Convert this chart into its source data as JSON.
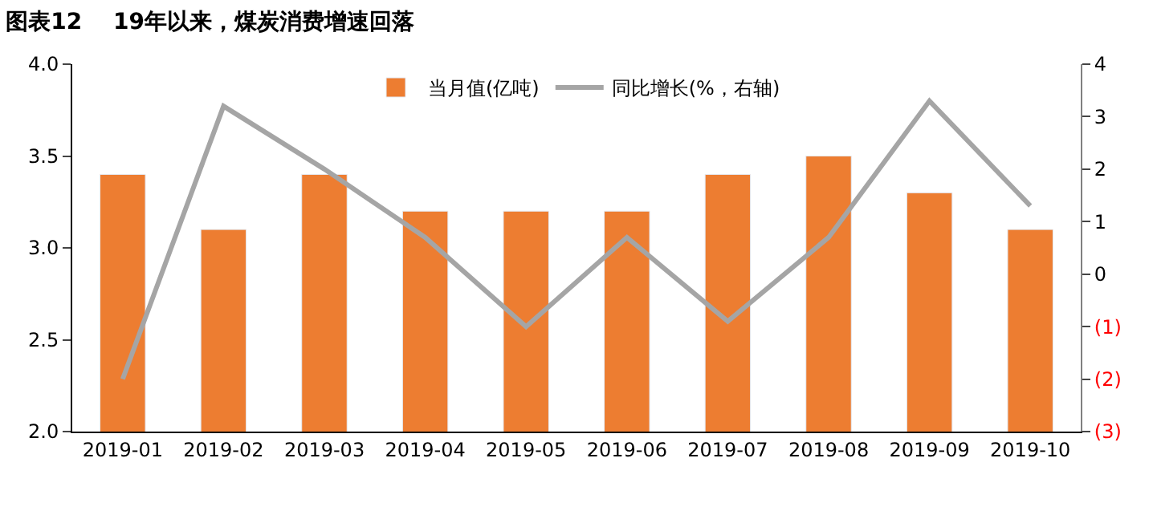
{
  "chart_data": {
    "type": "bar",
    "title": "图表12    19年以来，煤炭消费增速回落",
    "categories": [
      "2019-01",
      "2019-02",
      "2019-03",
      "2019-04",
      "2019-05",
      "2019-06",
      "2019-07",
      "2019-08",
      "2019-09",
      "2019-10"
    ],
    "series": [
      {
        "name": "当月值(亿吨)",
        "color": "#ed7d31",
        "values": [
          3.4,
          3.1,
          3.4,
          3.2,
          3.2,
          3.2,
          3.4,
          3.5,
          3.3,
          3.1
        ]
      },
      {
        "name": "同比增长(%，右轴)",
        "type": "line",
        "axis": "y2",
        "color": "#a5a5a5",
        "values": [
          -2.0,
          3.2,
          2.0,
          0.7,
          -1.0,
          0.7,
          -0.9,
          0.7,
          3.3,
          1.3
        ]
      }
    ],
    "ylim": [
      2.0,
      4.0
    ],
    "yticks": [
      {
        "value": 2.0,
        "label": "2.0"
      },
      {
        "value": 2.5,
        "label": "2.5"
      },
      {
        "value": 3.0,
        "label": "3.0"
      },
      {
        "value": 3.5,
        "label": "3.5"
      },
      {
        "value": 4.0,
        "label": "4.0"
      }
    ],
    "y2lim": [
      -3,
      4
    ],
    "y2ticks": [
      {
        "value": -3,
        "label": "(3)"
      },
      {
        "value": -2,
        "label": "(2)"
      },
      {
        "value": -1,
        "label": "(1)"
      },
      0,
      1,
      2,
      3,
      4
    ],
    "legend": "top",
    "marker": "none"
  }
}
